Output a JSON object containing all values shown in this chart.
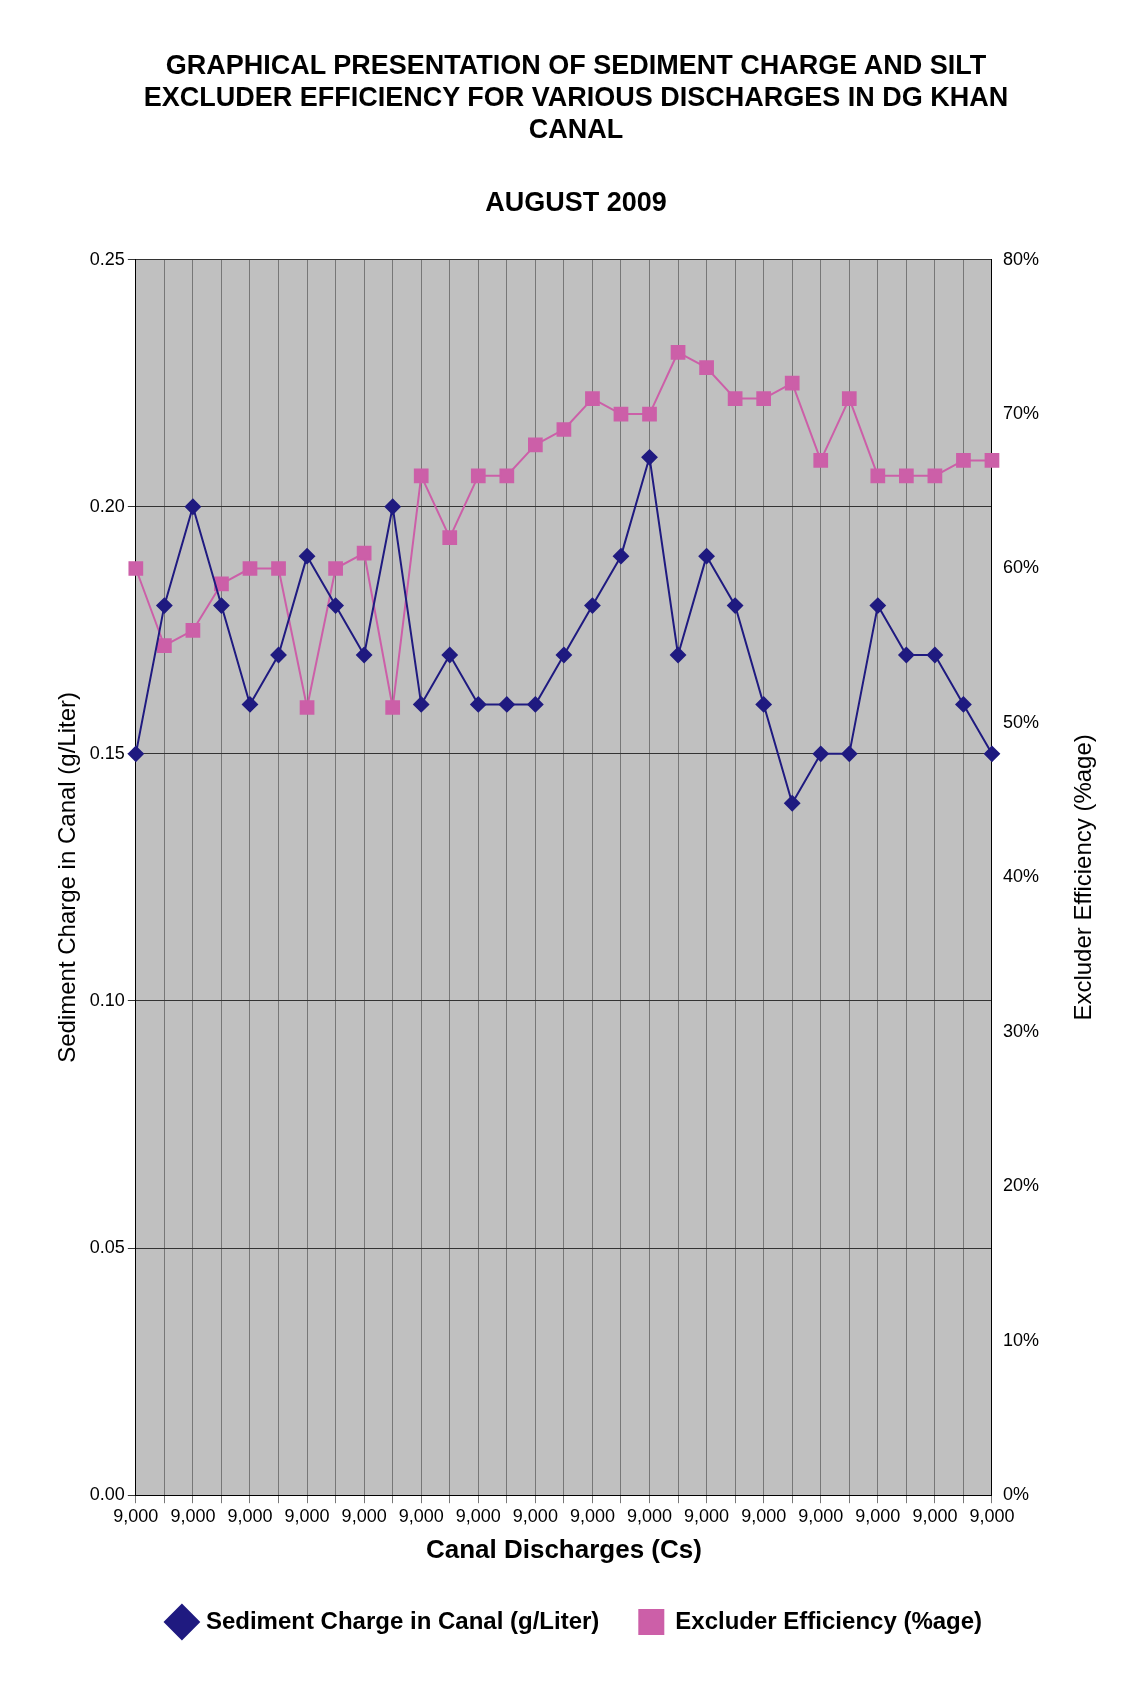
{
  "chart_data": {
    "type": "line",
    "title": "GRAPHICAL PRESENTATION OF SEDIMENT CHARGE AND SILT EXCLUDER EFFICIENCY FOR VARIOUS DISCHARGES IN DG KHAN CANAL",
    "subtitle": "AUGUST 2009",
    "xlabel": "Canal Discharges (Cs)",
    "ylabel": "Sediment Charge in Canal (g/Liter)",
    "y2label": "Excluder Efficiency (%age)",
    "categories": [
      "9,000",
      null,
      "9,000",
      null,
      "9,000",
      null,
      "9,000",
      null,
      "9,000",
      null,
      "9,000",
      null,
      "9,000",
      null,
      "9,000",
      null,
      "9,000",
      null,
      "9,000",
      null,
      "9,000",
      null,
      "9,000",
      null,
      "9,000",
      null,
      "9,000",
      null,
      "9,000",
      null,
      "9,000"
    ],
    "series": [
      {
        "name": "Sediment Charge in Canal (g/Liter)",
        "color": "#1f1a80",
        "marker": "diamond",
        "values": [
          0.15,
          0.18,
          0.2,
          0.18,
          0.16,
          0.17,
          0.19,
          0.18,
          0.17,
          0.2,
          0.16,
          0.17,
          0.16,
          0.16,
          0.16,
          0.17,
          0.18,
          0.19,
          0.21,
          0.17,
          0.19,
          0.18,
          0.16,
          0.14,
          0.15,
          0.15,
          0.18,
          0.17,
          0.17,
          0.16,
          0.15
        ]
      },
      {
        "name": "Excluder Efficiency (%age)",
        "color": "#cc5fa8",
        "marker": "square",
        "axis": "y2",
        "values": [
          60,
          55,
          56,
          59,
          60,
          60,
          51,
          60,
          61,
          51,
          66,
          62,
          66,
          66,
          68,
          69,
          71,
          70,
          70,
          74,
          73,
          71,
          71,
          72,
          67,
          71,
          66,
          66,
          66,
          67,
          67
        ]
      }
    ],
    "ylim": [
      0,
      0.25
    ],
    "yticks": [
      {
        "value": 0,
        "label": "0.00"
      },
      {
        "value": 0.05,
        "label": "0.05"
      },
      {
        "value": 0.1,
        "label": "0.10"
      },
      {
        "value": 0.15,
        "label": "0.15"
      },
      {
        "value": 0.2,
        "label": "0.20"
      },
      {
        "value": 0.25,
        "label": "0.25"
      }
    ],
    "y2lim": [
      0,
      80
    ],
    "y2ticks": [
      {
        "value": 0,
        "label": "0%"
      },
      {
        "value": 10,
        "label": "10%"
      },
      {
        "value": 20,
        "label": "20%"
      },
      {
        "value": 30,
        "label": "30%"
      },
      {
        "value": 40,
        "label": "40%"
      },
      {
        "value": 50,
        "label": "50%"
      },
      {
        "value": 60,
        "label": "60%"
      },
      {
        "value": 70,
        "label": "70%"
      },
      {
        "value": 80,
        "label": "80%"
      }
    ],
    "grid": true,
    "legend": "bottom",
    "line_style": "solid"
  }
}
